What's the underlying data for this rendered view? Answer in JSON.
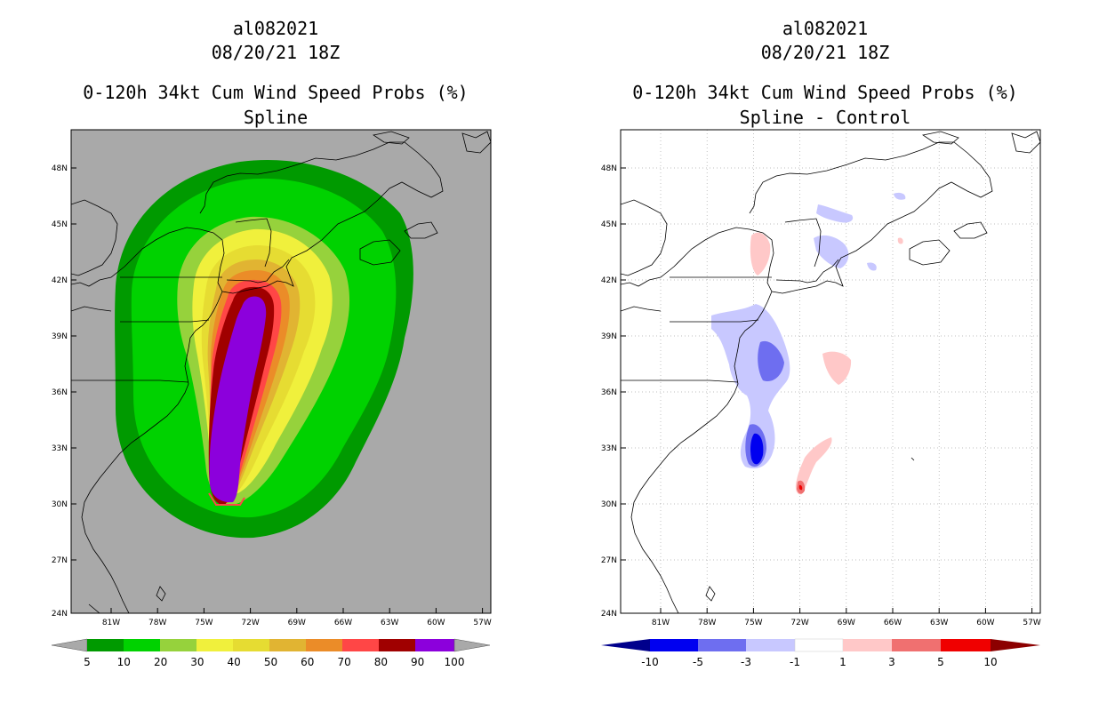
{
  "left_panel": {
    "storm": "al082021",
    "date": "08/20/21 18Z",
    "product": "0-120h 34kt Cum Wind Speed Probs (%)",
    "subtitle": "Spline",
    "colorbar_labels": [
      "5",
      "10",
      "20",
      "30",
      "40",
      "50",
      "60",
      "70",
      "80",
      "90",
      "100"
    ],
    "colors": {
      "background": "#a9a9a9",
      "c5": "#009a00",
      "c10": "#00d200",
      "c20": "#96d23c",
      "c30": "#f0f03c",
      "c40": "#e6dc32",
      "c50": "#e1b432",
      "c60": "#eb8c28",
      "c70": "#ff4646",
      "c80": "#a00000",
      "c90": "#8c00dc"
    }
  },
  "right_panel": {
    "storm": "al082021",
    "date": "08/20/21 18Z",
    "product": "0-120h 34kt Cum Wind Speed Probs (%)",
    "subtitle": "Spline - Control",
    "colorbar_labels": [
      "-10",
      "-5",
      "-3",
      "-1",
      "1",
      "3",
      "5",
      "10"
    ],
    "colors": {
      "dark_blue": "#00008c",
      "blue": "#0000f0",
      "mid_blue": "#6e6ef0",
      "light_blue": "#c8c8ff",
      "white": "#ffffff",
      "light_red": "#ffc8c8",
      "mid_red": "#f07070",
      "red": "#f00000",
      "dark_red": "#8c0000"
    }
  },
  "axes": {
    "lat_labels": [
      "48N",
      "45N",
      "42N",
      "39N",
      "36N",
      "33N",
      "30N",
      "27N",
      "24N"
    ],
    "lon_labels": [
      "81W",
      "78W",
      "75W",
      "72W",
      "69W",
      "66W",
      "63W",
      "60W",
      "57W"
    ]
  }
}
